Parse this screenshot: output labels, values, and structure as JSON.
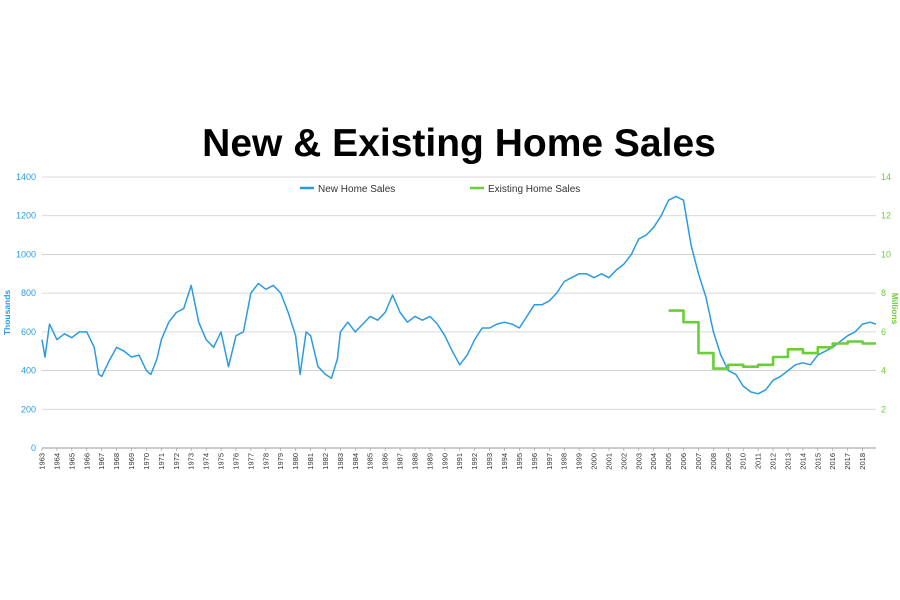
{
  "colors": {
    "new_home": "#2b9be0",
    "existing_home": "#6bcd3a",
    "left_axis": "#2b9be0",
    "right_axis": "#6bcd3a",
    "grid": "#cccccc"
  },
  "chart_data": {
    "type": "line",
    "title": "New & Existing Home Sales",
    "grid": true,
    "legend_position": "top-center",
    "y_left": {
      "label": "Thousands",
      "range": [
        0,
        1400
      ],
      "ticks": [
        "0",
        "200",
        "400",
        "600",
        "800",
        "1000",
        "1200",
        "1400"
      ]
    },
    "y_right": {
      "label": "Millions",
      "range": [
        0,
        14
      ],
      "ticks": [
        "2",
        "4",
        "6",
        "8",
        "10",
        "12",
        "14"
      ]
    },
    "x_range": [
      1963,
      2018.9
    ],
    "x_tick_labels": [
      "1963",
      "1964",
      "1965",
      "1966",
      "1967",
      "1968",
      "1969",
      "1970",
      "1971",
      "1972",
      "1973",
      "1974",
      "1975",
      "1976",
      "1977",
      "1978",
      "1979",
      "1980",
      "1981",
      "1982",
      "1983",
      "1984",
      "1985",
      "1986",
      "1987",
      "1988",
      "1989",
      "1990",
      "1991",
      "1992",
      "1993",
      "1994",
      "1995",
      "1996",
      "1997",
      "1998",
      "1999",
      "2000",
      "2001",
      "2002",
      "2003",
      "2004",
      "2005",
      "2006",
      "2007",
      "2008",
      "2009",
      "2010",
      "2011",
      "2012",
      "2013",
      "2014",
      "2015",
      "2016",
      "2017",
      "2018"
    ],
    "series": [
      {
        "name": "New Home Sales",
        "axis": "left",
        "step": false,
        "x": [
          1963.0,
          1963.2,
          1963.5,
          1964.0,
          1964.5,
          1965.0,
          1965.5,
          1966.0,
          1966.5,
          1966.8,
          1967.0,
          1967.5,
          1968.0,
          1968.5,
          1969.0,
          1969.5,
          1970.0,
          1970.3,
          1970.7,
          1971.0,
          1971.5,
          1972.0,
          1972.5,
          1973.0,
          1973.5,
          1974.0,
          1974.5,
          1975.0,
          1975.5,
          1976.0,
          1976.5,
          1977.0,
          1977.5,
          1978.0,
          1978.5,
          1979.0,
          1979.5,
          1980.0,
          1980.3,
          1980.7,
          1981.0,
          1981.5,
          1982.0,
          1982.4,
          1982.8,
          1983.0,
          1983.5,
          1984.0,
          1984.5,
          1985.0,
          1985.5,
          1986.0,
          1986.5,
          1987.0,
          1987.5,
          1988.0,
          1988.5,
          1989.0,
          1989.5,
          1990.0,
          1990.5,
          1991.0,
          1991.5,
          1992.0,
          1992.5,
          1993.0,
          1993.5,
          1994.0,
          1994.5,
          1995.0,
          1995.5,
          1996.0,
          1996.5,
          1997.0,
          1997.5,
          1998.0,
          1998.5,
          1999.0,
          1999.5,
          2000.0,
          2000.5,
          2001.0,
          2001.5,
          2002.0,
          2002.5,
          2003.0,
          2003.5,
          2004.0,
          2004.5,
          2005.0,
          2005.5,
          2006.0,
          2006.5,
          2007.0,
          2007.5,
          2008.0,
          2008.5,
          2009.0,
          2009.5,
          2010.0,
          2010.5,
          2011.0,
          2011.5,
          2012.0,
          2012.5,
          2013.0,
          2013.5,
          2014.0,
          2014.5,
          2015.0,
          2015.5,
          2016.0,
          2016.5,
          2017.0,
          2017.5,
          2018.0,
          2018.5,
          2018.9
        ],
        "y": [
          560,
          470,
          640,
          560,
          590,
          570,
          600,
          600,
          520,
          380,
          370,
          450,
          520,
          500,
          470,
          480,
          400,
          380,
          460,
          560,
          650,
          700,
          720,
          840,
          650,
          560,
          520,
          600,
          420,
          580,
          600,
          800,
          850,
          820,
          840,
          800,
          700,
          580,
          380,
          600,
          580,
          420,
          380,
          360,
          460,
          600,
          650,
          600,
          640,
          680,
          660,
          700,
          790,
          700,
          650,
          680,
          660,
          680,
          640,
          580,
          500,
          430,
          480,
          560,
          620,
          620,
          640,
          650,
          640,
          620,
          680,
          740,
          740,
          760,
          800,
          860,
          880,
          900,
          900,
          880,
          900,
          880,
          920,
          950,
          1000,
          1080,
          1100,
          1140,
          1200,
          1280,
          1300,
          1280,
          1050,
          900,
          780,
          600,
          480,
          400,
          380,
          320,
          290,
          280,
          300,
          350,
          370,
          400,
          430,
          440,
          430,
          480,
          500,
          520,
          550,
          580,
          600,
          640,
          650,
          640
        ]
      },
      {
        "name": "Existing Home Sales",
        "axis": "right",
        "step": true,
        "x": [
          2005.0,
          2006.0,
          2007.0,
          2008.0,
          2009.0,
          2010.0,
          2011.0,
          2012.0,
          2013.0,
          2014.0,
          2015.0,
          2016.0,
          2017.0,
          2018.0,
          2018.9
        ],
        "y": [
          7.1,
          6.5,
          4.9,
          4.1,
          4.3,
          4.2,
          4.3,
          4.7,
          5.1,
          4.9,
          5.2,
          5.4,
          5.5,
          5.4,
          5.4
        ]
      }
    ]
  }
}
